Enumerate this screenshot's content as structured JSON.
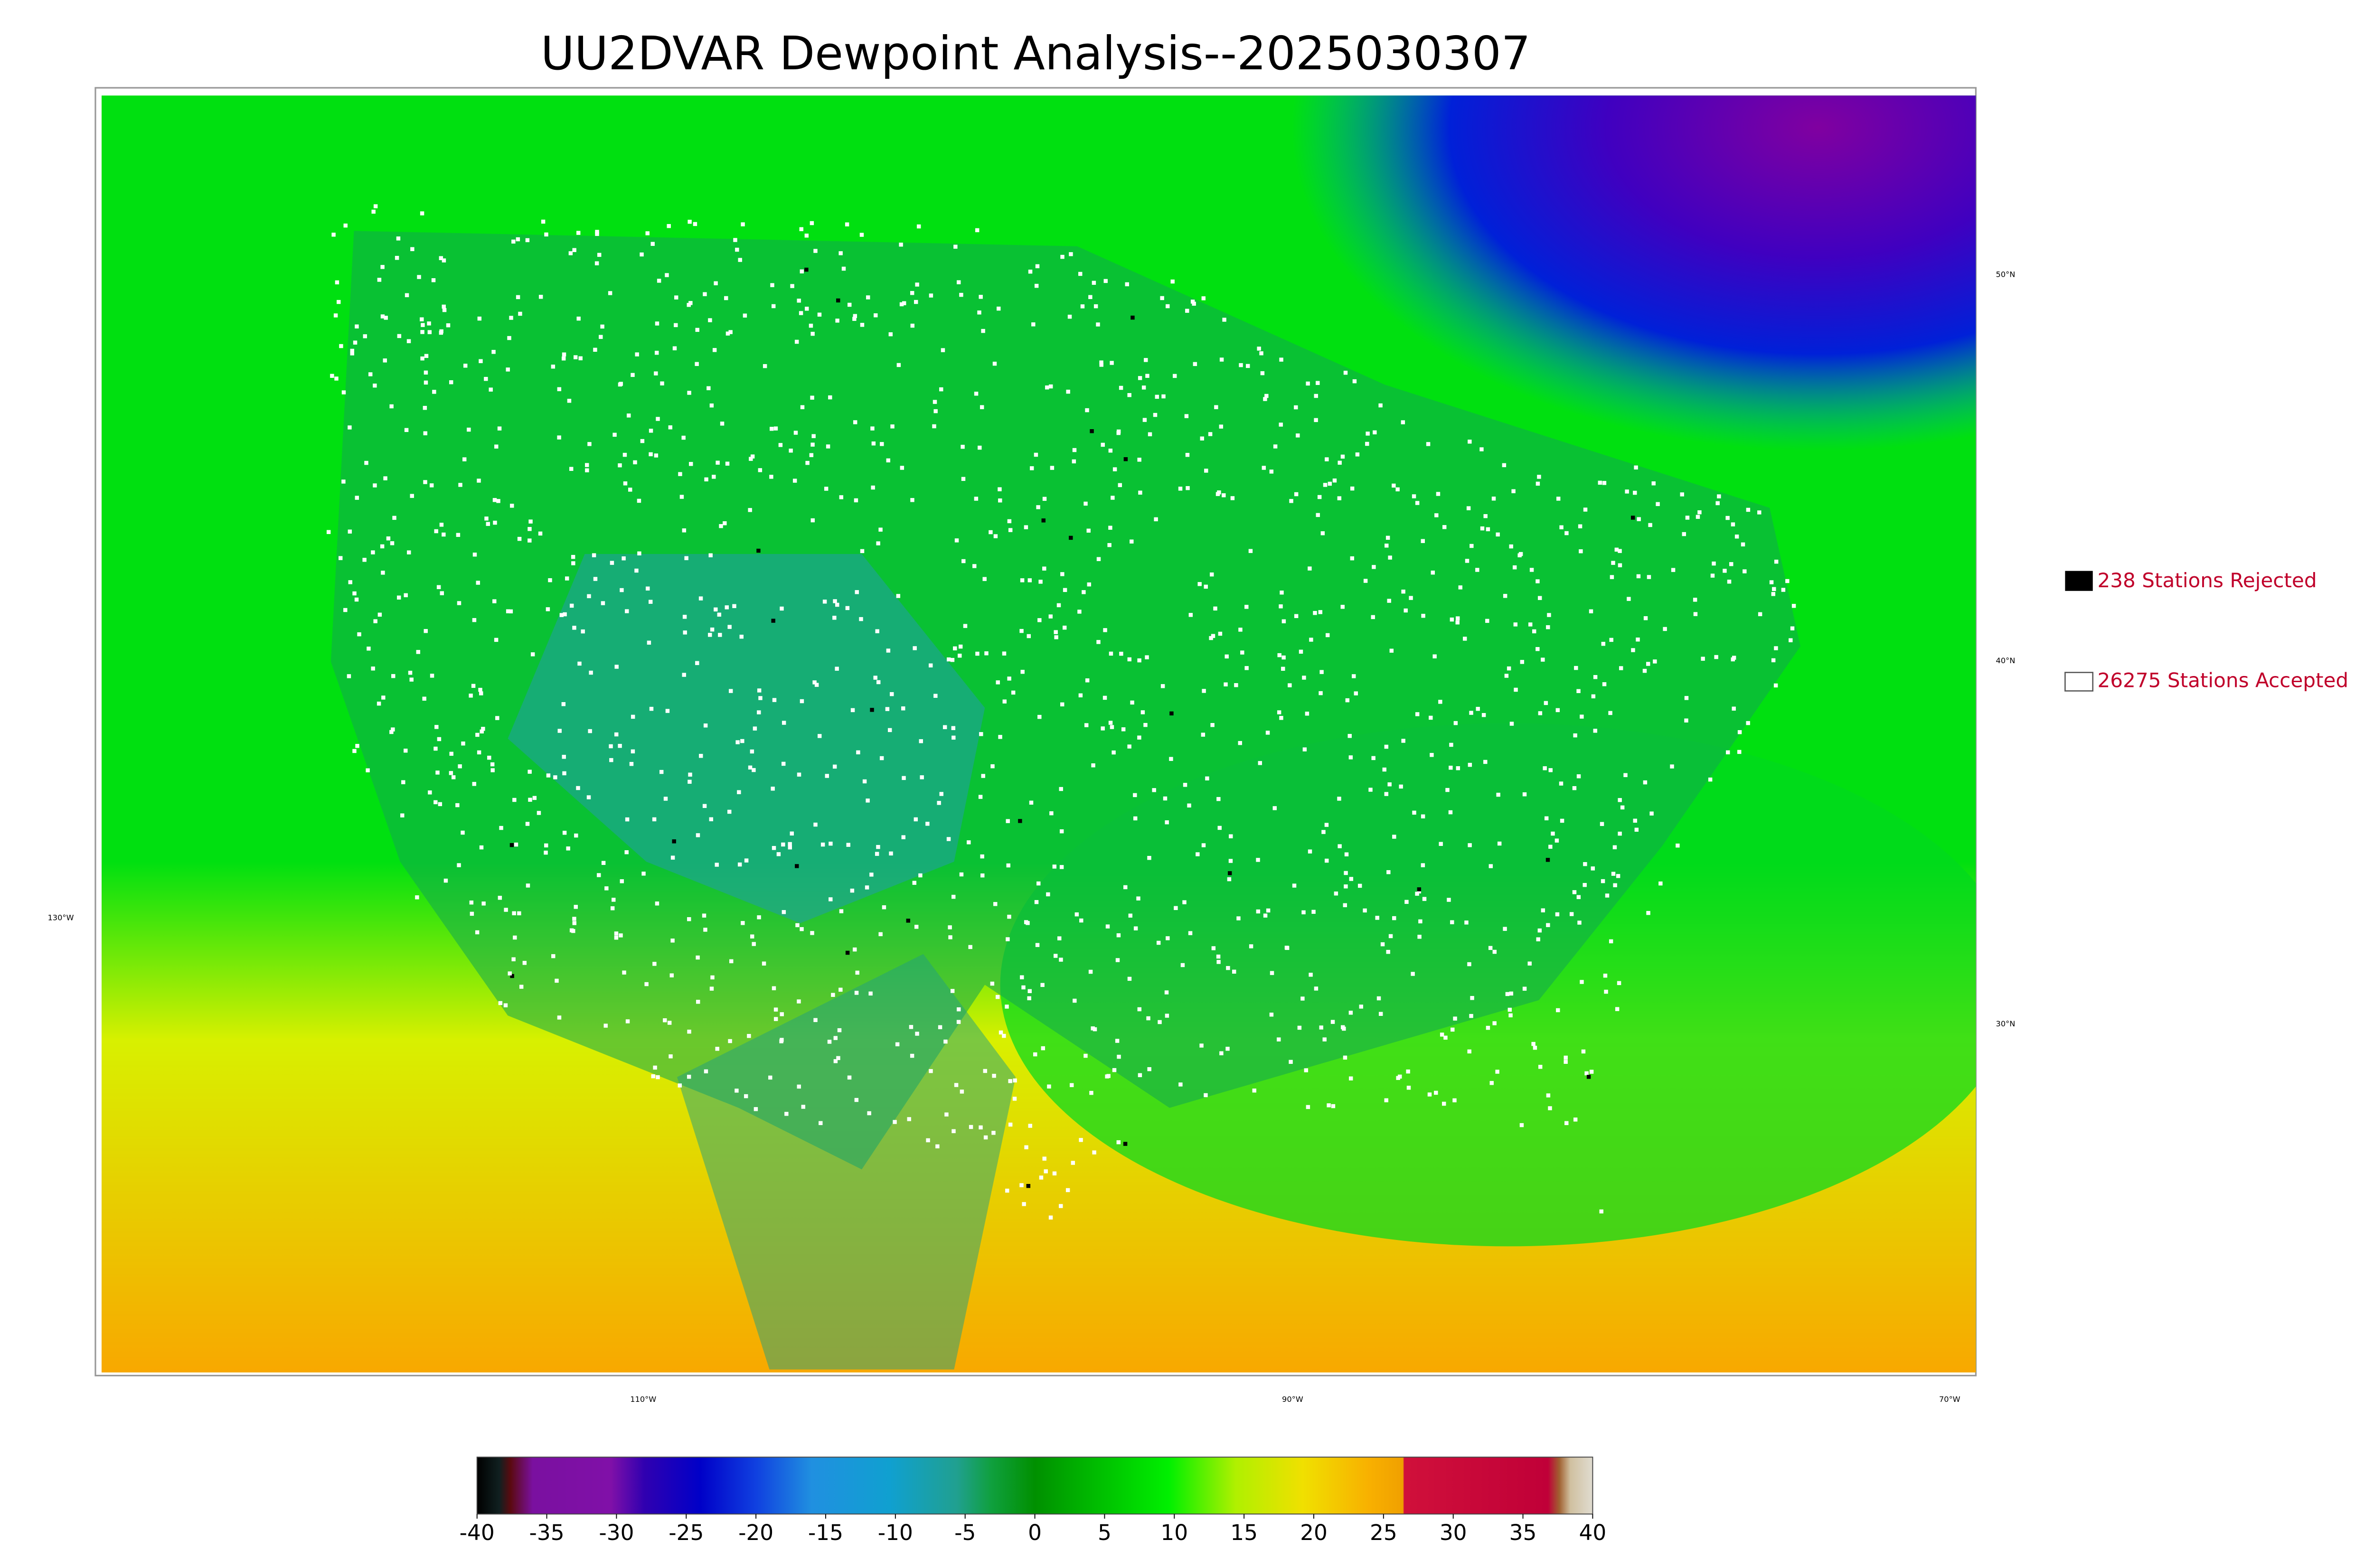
{
  "title": "UU2DVAR Dewpoint Analysis--2025030307",
  "legend": {
    "rejected": "238 Stations Rejected",
    "accepted": "26275 Stations Accepted"
  },
  "graticule": {
    "latitudes": [
      "50°N",
      "40°N",
      "30°N"
    ],
    "longitudes": [
      "130°W",
      "110°W",
      "90°W",
      "70°W"
    ]
  },
  "colorbar": {
    "range": [
      -40,
      40
    ],
    "ticks": [
      -40,
      -35,
      -30,
      -25,
      -20,
      -15,
      -10,
      -5,
      0,
      5,
      10,
      15,
      20,
      25,
      30,
      35,
      40
    ]
  }
}
